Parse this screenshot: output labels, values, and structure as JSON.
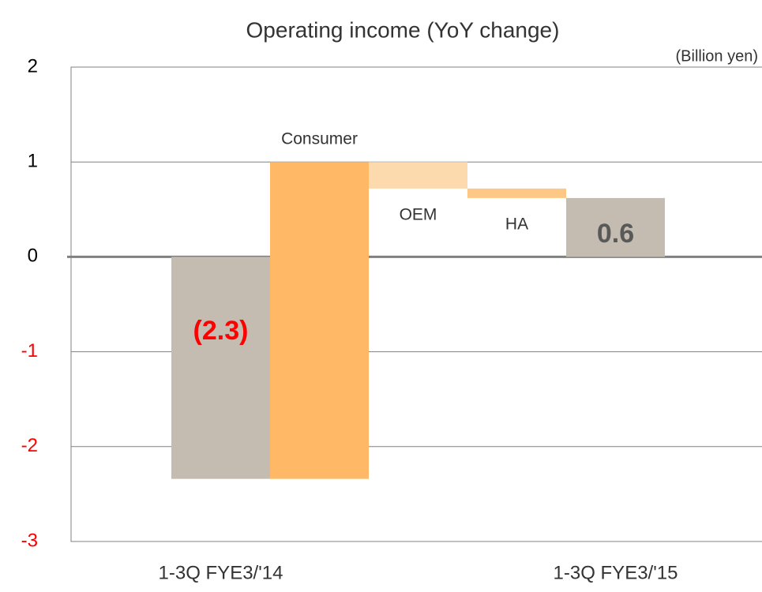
{
  "chart_data": {
    "type": "waterfall",
    "title": "Operating income (YoY change)",
    "unit_label": "(Billion yen)",
    "categories": [
      "1-3Q FYE3/'14",
      "Consumer",
      "OEM",
      "HA",
      "1-3Q FYE3/'15"
    ],
    "measures": [
      "total",
      "delta",
      "delta",
      "delta",
      "total"
    ],
    "values": [
      -2.34,
      3.34,
      -0.28,
      -0.1,
      0.62
    ],
    "value_labels": [
      "(2.3)",
      null,
      null,
      null,
      "0.6"
    ],
    "value_label_colors": [
      "#ff0000",
      null,
      null,
      null,
      "#595959"
    ],
    "colors": [
      "#c4bcb0",
      "#ffb966",
      "#fdd9ae",
      "#fdc886",
      "#c4bcb0"
    ],
    "ylim": [
      -3,
      2
    ],
    "yticks": [
      -3,
      -2,
      -1,
      0,
      1,
      2
    ],
    "negative_tick_color": "#ff0000",
    "grid": true
  }
}
